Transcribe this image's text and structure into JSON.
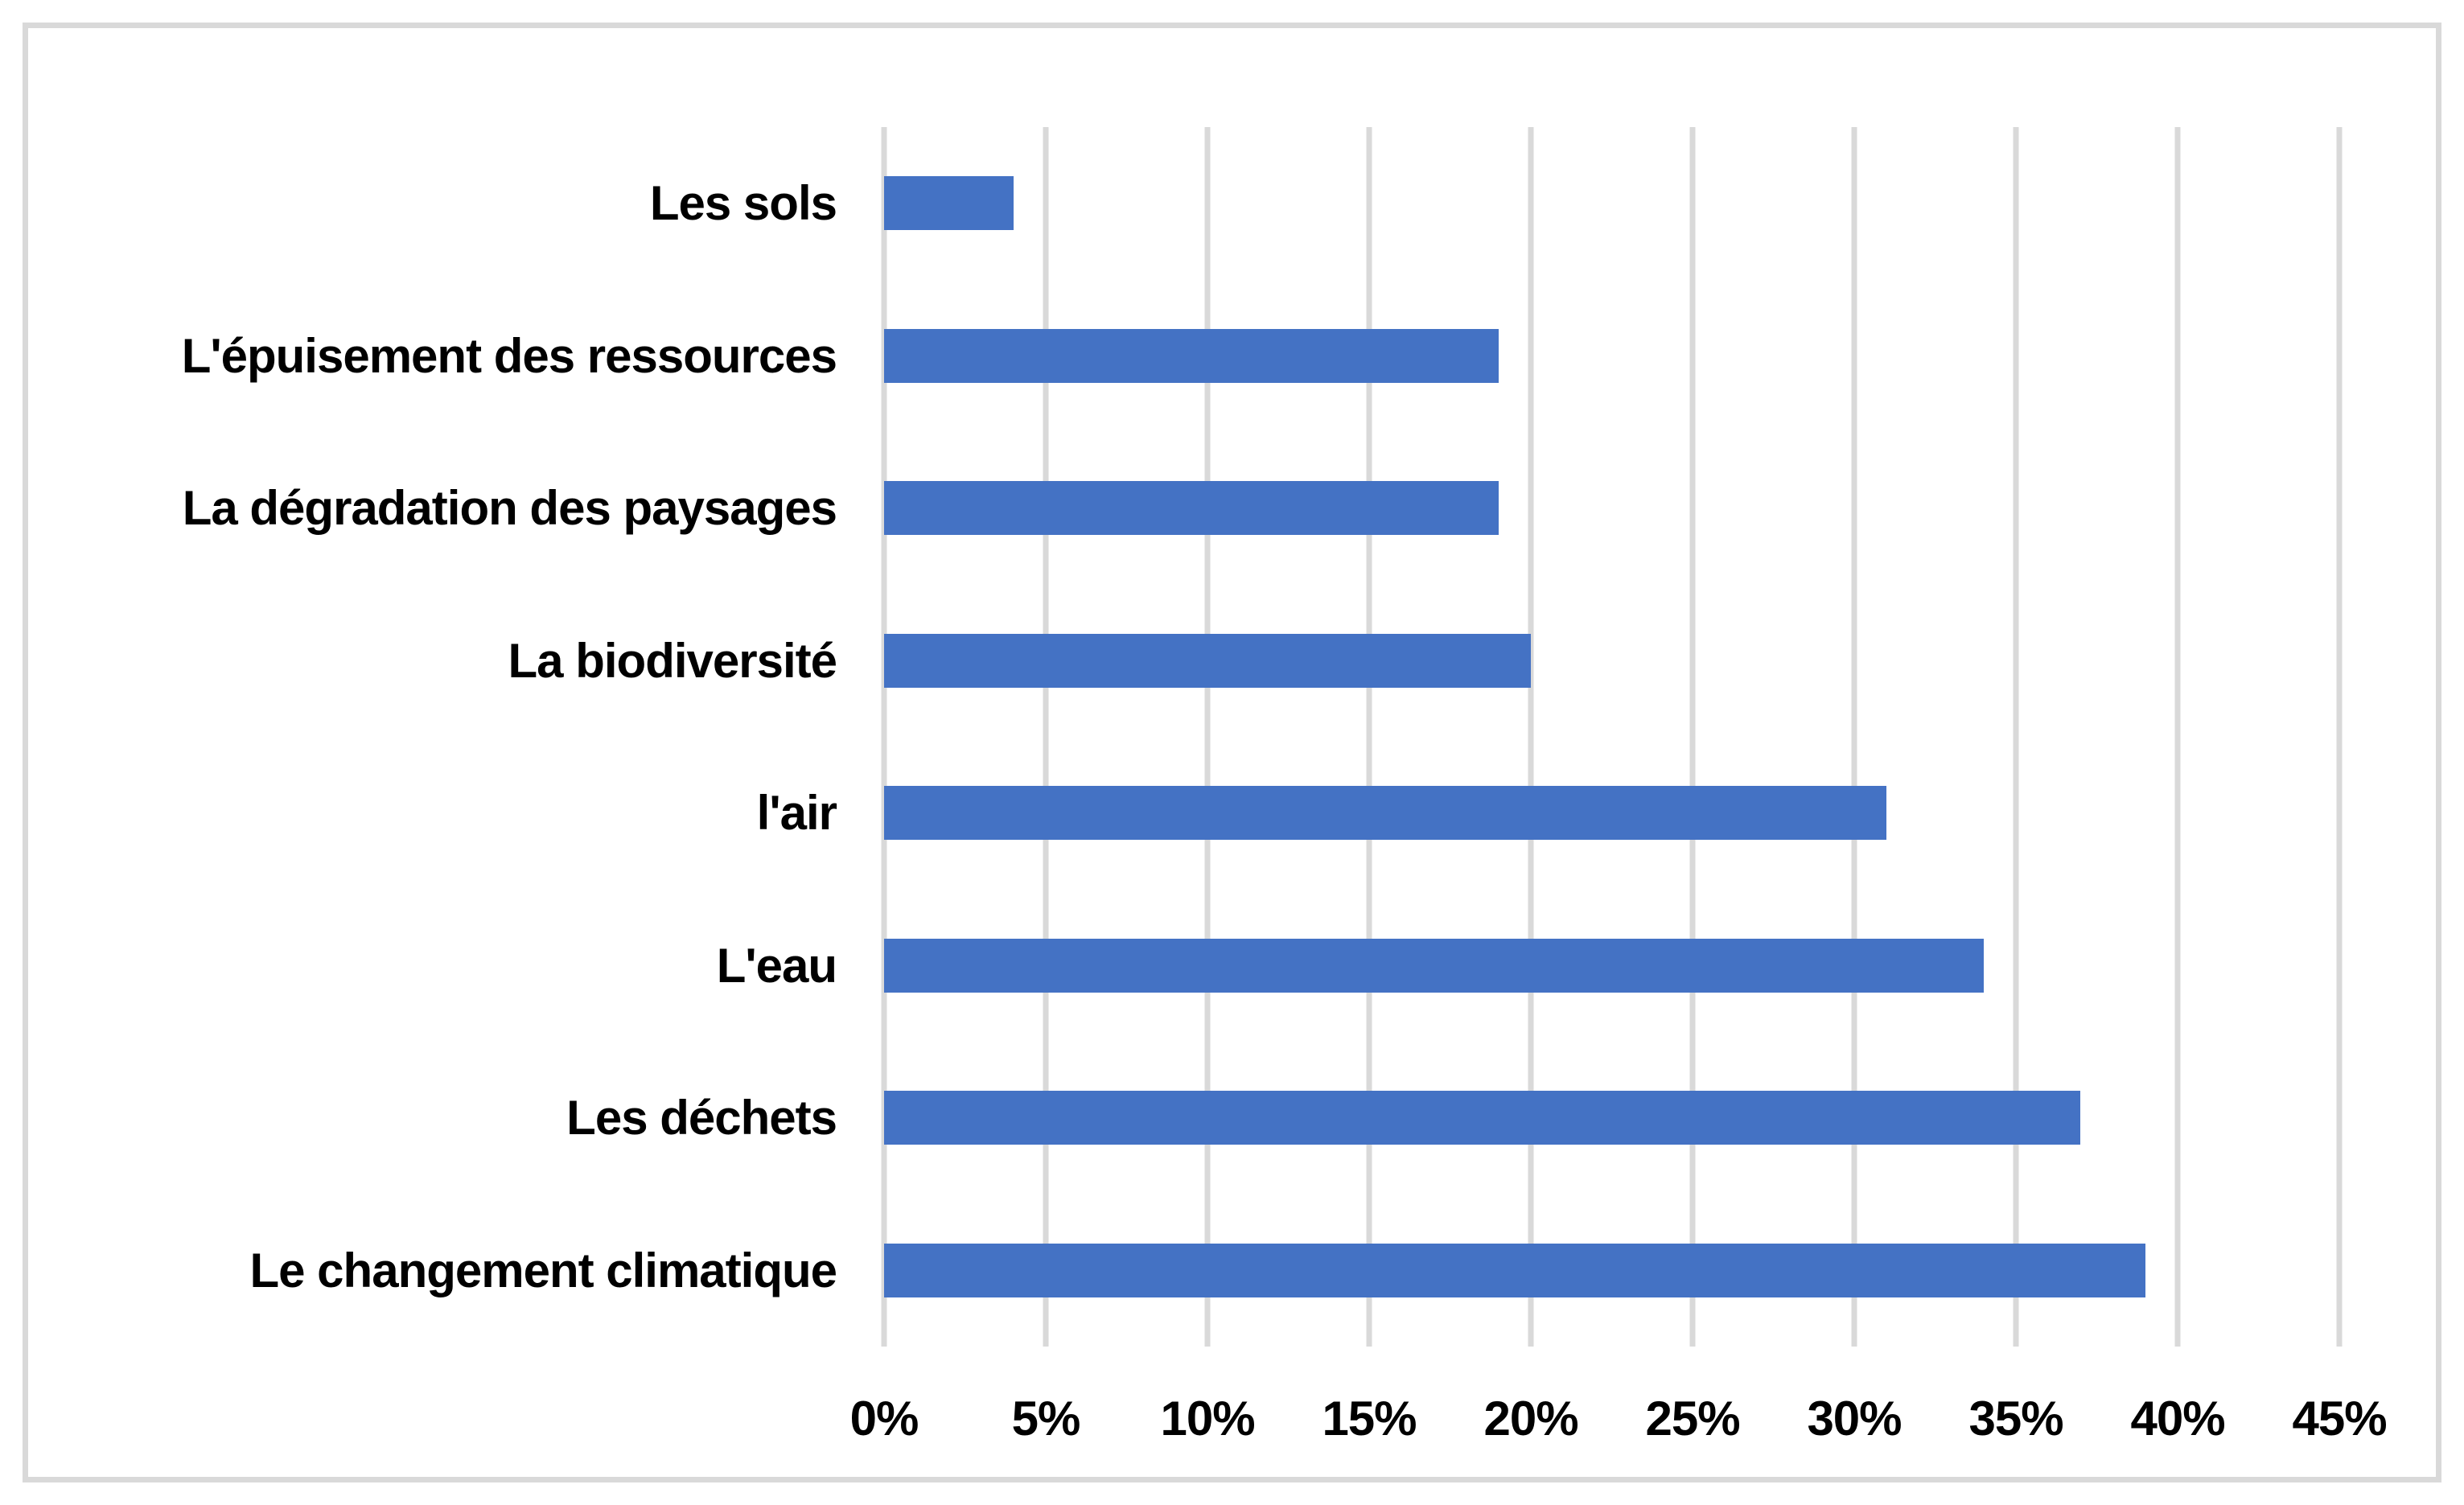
{
  "chart_data": {
    "type": "bar",
    "orientation": "horizontal",
    "title": "",
    "xlabel": "",
    "ylabel": "",
    "categories": [
      "Les sols",
      "L'épuisement des ressources",
      "La dégradation des paysages",
      "La biodiversité",
      "l'air",
      "L'eau",
      "Les déchets",
      "Le changement climatique"
    ],
    "values": [
      4,
      19,
      19,
      20,
      31,
      34,
      37,
      39
    ],
    "unit": "%",
    "xlim": [
      0,
      45
    ],
    "tick_step": 5,
    "x_ticks": [
      "0%",
      "5%",
      "10%",
      "15%",
      "20%",
      "25%",
      "30%",
      "35%",
      "40%",
      "45%"
    ],
    "grid": true,
    "legend": false,
    "colors": {
      "bar": "#4472C4",
      "gridline": "#D9D9D9",
      "frame_border": "#D9D9D9",
      "text": "#000000",
      "background": "#FFFFFF"
    }
  }
}
